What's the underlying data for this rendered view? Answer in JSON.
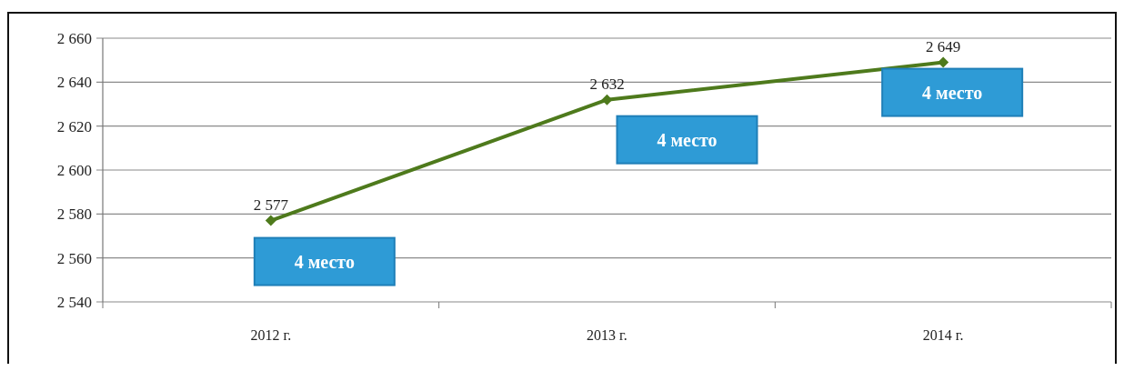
{
  "chart_data": {
    "type": "line",
    "categories": [
      "2012 г.",
      "2013 г.",
      "2014 г."
    ],
    "series": [
      {
        "color": "#4e7a1c",
        "values": [
          2577,
          2632,
          2649
        ],
        "value_labels": [
          "2 577",
          "2 632",
          "2 649"
        ]
      }
    ],
    "ylim": [
      2540,
      2660
    ],
    "yticks": [
      {
        "value": 2540,
        "label": "2 540"
      },
      {
        "value": 2560,
        "label": "2 560"
      },
      {
        "value": 2580,
        "label": "2 580"
      },
      {
        "value": 2600,
        "label": "2 600"
      },
      {
        "value": 2620,
        "label": "2 620"
      },
      {
        "value": 2640,
        "label": "2 640"
      },
      {
        "value": 2660,
        "label": "2 660"
      }
    ],
    "grid": "y",
    "marker": "diamond",
    "line_style": "solid",
    "annotations": [
      "4 место",
      "4 место",
      "4 место"
    ]
  }
}
